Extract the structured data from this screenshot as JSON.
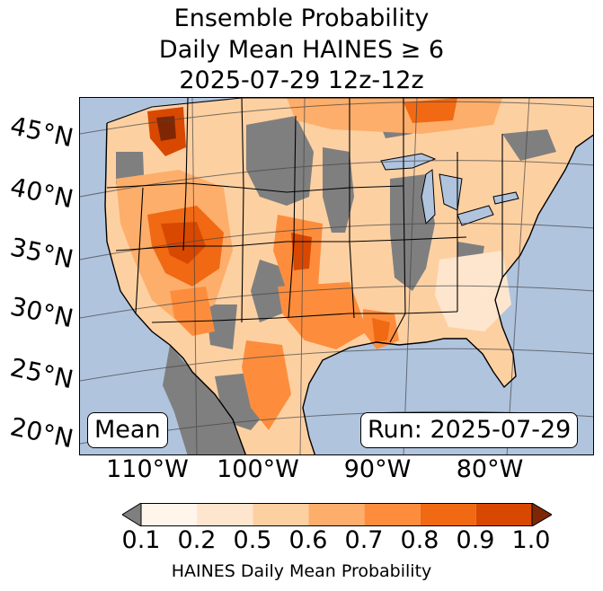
{
  "title": {
    "line1": "Ensemble Probability",
    "line2": "Daily Mean HAINES ≥ 6",
    "line3": "2025-07-29 12z-12z"
  },
  "map": {
    "latitude_labels": [
      "45°N",
      "40°N",
      "35°N",
      "30°N",
      "25°N",
      "20°N"
    ],
    "longitude_labels": [
      "110°W",
      "100°W",
      "90°W",
      "80°W"
    ],
    "mean_box": "Mean",
    "run_box": "Run: 2025-07-29"
  },
  "colorbar": {
    "ticks": [
      "0.1",
      "0.2",
      "0.5",
      "0.6",
      "0.7",
      "0.8",
      "0.9",
      "1.0"
    ],
    "label": "HAINES Daily Mean Probability",
    "under_color": "#7f7f7f",
    "over_color": "#7f2704",
    "colors": [
      "#fff5eb",
      "#fee6ce",
      "#fdd0a2",
      "#fdae6b",
      "#fd8d3c",
      "#f16913",
      "#d94801"
    ]
  },
  "colors": {
    "ocean": "#b0c4de",
    "lakes": "#b0c4de",
    "missing": "#7f7f7f"
  }
}
